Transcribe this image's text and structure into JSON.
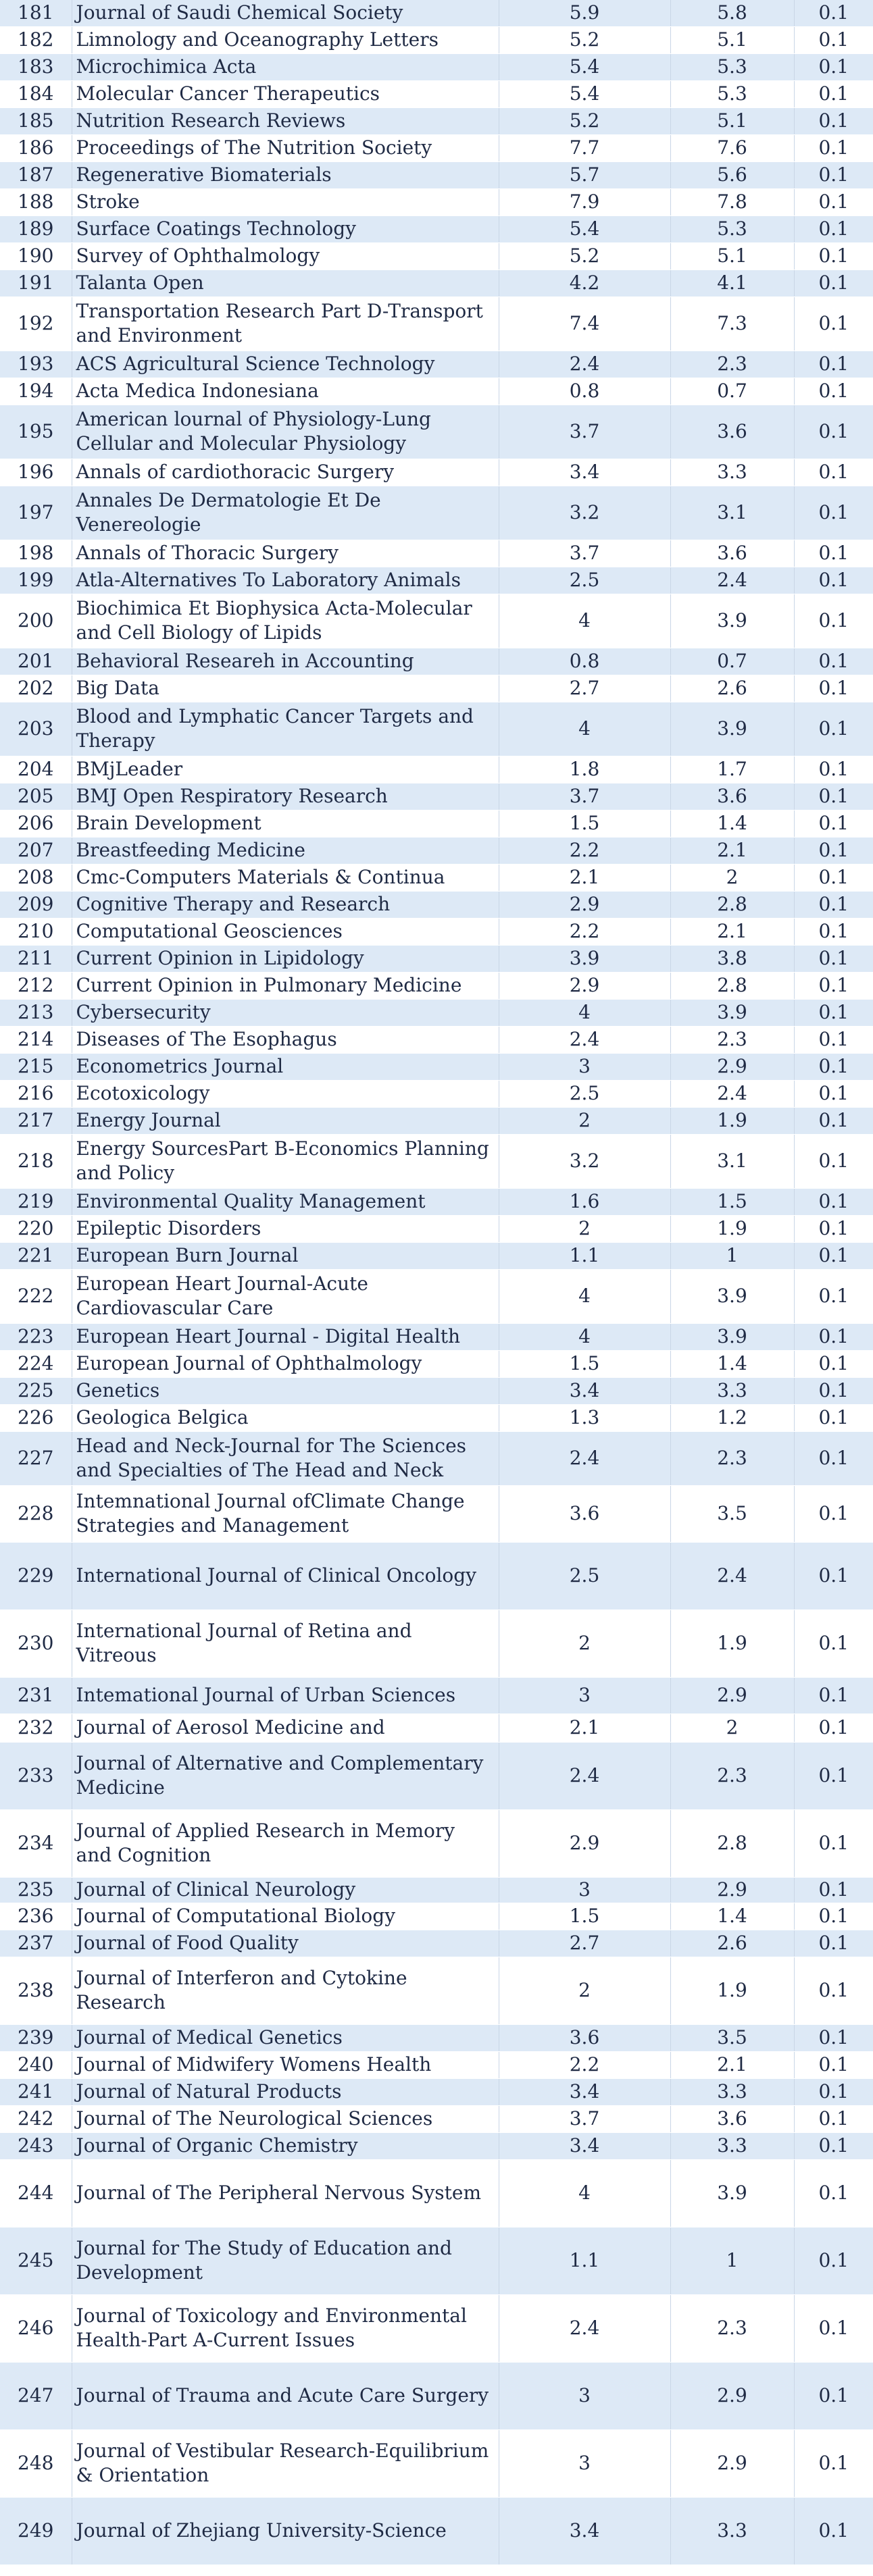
{
  "rows": [
    {
      "no": "181",
      "name": "Journal of Saudi Chemical Society",
      "a": "5.9",
      "b": "5.8",
      "c": "0.1",
      "h": 39
    },
    {
      "no": "182",
      "name": "Limnology and Oceanography Letters",
      "a": "5.2",
      "b": "5.1",
      "c": "0.1",
      "h": 40
    },
    {
      "no": "183",
      "name": "Microchimica Acta",
      "a": "5.4",
      "b": "5.3",
      "c": "0.1",
      "h": 40
    },
    {
      "no": "184",
      "name": "Molecular Cancer Therapeutics",
      "a": "5.4",
      "b": "5.3",
      "c": "0.1",
      "h": 40
    },
    {
      "no": "185",
      "name": "Nutrition Research Reviews",
      "a": "5.2",
      "b": "5.1",
      "c": "0.1",
      "h": 40
    },
    {
      "no": "186",
      "name": "Proceedings of The Nutrition Society",
      "a": "7.7",
      "b": "7.6",
      "c": "0.1",
      "h": 40
    },
    {
      "no": "187",
      "name": "Regenerative Biomaterials",
      "a": "5.7",
      "b": "5.6",
      "c": "0.1",
      "h": 40
    },
    {
      "no": "188",
      "name": "Stroke",
      "a": "7.9",
      "b": "7.8",
      "c": "0.1",
      "h": 40
    },
    {
      "no": "189",
      "name": "Surface Coatings Technology",
      "a": "5.4",
      "b": "5.3",
      "c": "0.1",
      "h": 40
    },
    {
      "no": "190",
      "name": "Survey of Ophthalmology",
      "a": "5.2",
      "b": "5.1",
      "c": "0.1",
      "h": 40
    },
    {
      "no": "191",
      "name": "Talanta Open",
      "a": "4.2",
      "b": "4.1",
      "c": "0.1",
      "h": 40
    },
    {
      "no": "192",
      "name": "Transportation Research Part D-Transport and Environment",
      "a": "7.4",
      "b": "7.3",
      "c": "0.1",
      "h": 80
    },
    {
      "no": "193",
      "name": "ACS Agricultural Science Technology",
      "a": "2.4",
      "b": "2.3",
      "c": "0.1",
      "h": 40
    },
    {
      "no": "194",
      "name": "Acta Medica Indonesiana",
      "a": "0.8",
      "b": "0.7",
      "c": "0.1",
      "h": 40
    },
    {
      "no": "195",
      "name": "American lournal of Physiology-Lung Cellular and Molecular Physiology",
      "a": "3.7",
      "b": "3.6",
      "c": "0.1",
      "h": 80
    },
    {
      "no": "196",
      "name": "Annals of cardiothoracic Surgery",
      "a": "3.4",
      "b": "3.3",
      "c": "0.1",
      "h": 40
    },
    {
      "no": "197",
      "name": "Annales De Dermatologie Et De Venereologie",
      "a": "3.2",
      "b": "3.1",
      "c": "0.1",
      "h": 80
    },
    {
      "no": "198",
      "name": "Annals of Thoracic Surgery",
      "a": "3.7",
      "b": "3.6",
      "c": "0.1",
      "h": 40
    },
    {
      "no": "199",
      "name": "Atla-Alternatives To Laboratory Animals",
      "a": "2.5",
      "b": "2.4",
      "c": "0.1",
      "h": 40
    },
    {
      "no": "200",
      "name": "Biochimica Et Biophysica Acta-Molecular and Cell Biology of Lipids",
      "a": "4",
      "b": "3.9",
      "c": "0.1",
      "h": 80
    },
    {
      "no": "201",
      "name": "Behavioral Researeh in Accounting",
      "a": "0.8",
      "b": "0.7",
      "c": "0.1",
      "h": 40
    },
    {
      "no": "202",
      "name": "Big Data",
      "a": "2.7",
      "b": "2.6",
      "c": "0.1",
      "h": 40
    },
    {
      "no": "203",
      "name": "Blood and Lymphatic Cancer Targets and Therapy",
      "a": "4",
      "b": "3.9",
      "c": "0.1",
      "h": 80
    },
    {
      "no": "204",
      "name": "BMjLeader",
      "a": "1.8",
      "b": "1.7",
      "c": "0.1",
      "h": 40
    },
    {
      "no": "205",
      "name": "BMJ  Open Respiratory Research",
      "a": "3.7",
      "b": "3.6",
      "c": "0.1",
      "h": 40
    },
    {
      "no": "206",
      "name": "Brain Development",
      "a": "1.5",
      "b": "1.4",
      "c": "0.1",
      "h": 40
    },
    {
      "no": "207",
      "name": "Breastfeeding Medicine",
      "a": "2.2",
      "b": "2.1",
      "c": "0.1",
      "h": 40
    },
    {
      "no": "208",
      "name": "Cmc-Computers Materials & Continua",
      "a": "2.1",
      "b": "2",
      "c": "0.1",
      "h": 40
    },
    {
      "no": "209",
      "name": "Cognitive Therapy and Research",
      "a": "2.9",
      "b": "2.8",
      "c": "0.1",
      "h": 40
    },
    {
      "no": "210",
      "name": "Computational Geosciences",
      "a": "2.2",
      "b": "2.1",
      "c": "0.1",
      "h": 40
    },
    {
      "no": "211",
      "name": "Current Opinion in Lipidology",
      "a": "3.9",
      "b": "3.8",
      "c": "0.1",
      "h": 40
    },
    {
      "no": "212",
      "name": "Current Opinion in Pulmonary Medicine",
      "a": "2.9",
      "b": "2.8",
      "c": "0.1",
      "h": 40
    },
    {
      "no": "213",
      "name": "Cybersecurity",
      "a": "4",
      "b": "3.9",
      "c": "0.1",
      "h": 40
    },
    {
      "no": "214",
      "name": "Diseases of The Esophagus",
      "a": "2.4",
      "b": "2.3",
      "c": "0.1",
      "h": 40
    },
    {
      "no": "215",
      "name": "Econometrics Journal",
      "a": "3",
      "b": "2.9",
      "c": "0.1",
      "h": 40
    },
    {
      "no": "216",
      "name": "Ecotoxicology",
      "a": "2.5",
      "b": "2.4",
      "c": "0.1",
      "h": 40
    },
    {
      "no": "217",
      "name": "Energy Journal",
      "a": "2",
      "b": "1.9",
      "c": "0.1",
      "h": 40
    },
    {
      "no": "218",
      "name": "Energy SourcesPart B-Economics Planning and Policy",
      "a": "3.2",
      "b": "3.1",
      "c": "0.1",
      "h": 80
    },
    {
      "no": "219",
      "name": "Environmental Quality Management",
      "a": "1.6",
      "b": "1.5",
      "c": "0.1",
      "h": 40
    },
    {
      "no": "220",
      "name": "Epileptic Disorders",
      "a": "2",
      "b": "1.9",
      "c": "0.1",
      "h": 40
    },
    {
      "no": "221",
      "name": "European Burn Journal",
      "a": "1.1",
      "b": "1",
      "c": "0.1",
      "h": 40
    },
    {
      "no": "222",
      "name": "European Heart Journal-Acute Cardiovascular Care",
      "a": "4",
      "b": "3.9",
      "c": "0.1",
      "h": 80
    },
    {
      "no": "223",
      "name": "European Heart Journal - Digital Health",
      "a": "4",
      "b": "3.9",
      "c": "0.1",
      "h": 40
    },
    {
      "no": "224",
      "name": "European Journal of Ophthalmology",
      "a": "1.5",
      "b": "1.4",
      "c": "0.1",
      "h": 40
    },
    {
      "no": "225",
      "name": "Genetics",
      "a": "3.4",
      "b": "3.3",
      "c": "0.1",
      "h": 40
    },
    {
      "no": "226",
      "name": "Geologica Belgica",
      "a": "1.3",
      "b": "1.2",
      "c": "0.1",
      "h": 40
    },
    {
      "no": "227",
      "name": "Head and Neck-Journal for The Sciences and Specialties of The Head and Neck",
      "a": "2.4",
      "b": "2.3",
      "c": "0.1",
      "h": 80
    },
    {
      "no": "228",
      "name": "Intemnational Journal ofClimate Change Strategies and Management",
      "a": "3.6",
      "b": "3.5",
      "c": "0.1",
      "h": 84
    },
    {
      "no": "229",
      "name": "International Journal of Clinical Oncology",
      "a": "2.5",
      "b": "2.4",
      "c": "0.1",
      "h": 100
    },
    {
      "no": "230",
      "name": "International Journal of Retina and Vitreous",
      "a": "2",
      "b": "1.9",
      "c": "0.1",
      "h": 100
    },
    {
      "no": "231",
      "name": "Intemational Journal of Urban Sciences",
      "a": "3",
      "b": "2.9",
      "c": "0.1",
      "h": 54
    },
    {
      "no": "232",
      "name": "Journal of Aerosol Medicine and",
      "a": "2.1",
      "b": "2",
      "c": "0.1",
      "h": 42
    },
    {
      "no": "233",
      "name": "Journal of Alternative and Complementary Medicine",
      "a": "2.4",
      "b": "2.3",
      "c": "0.1",
      "h": 100
    },
    {
      "no": "234",
      "name": "Journal of Applied Research in Memory and Cognition",
      "a": "2.9",
      "b": "2.8",
      "c": "0.1",
      "h": 100
    },
    {
      "no": "235",
      "name": "Journal of Clinical Neurology",
      "a": "3",
      "b": "2.9",
      "c": "0.1",
      "h": 38
    },
    {
      "no": "236",
      "name": "Journal of Computational Biology",
      "a": "1.5",
      "b": "1.4",
      "c": "0.1",
      "h": 40
    },
    {
      "no": "237",
      "name": "Journal of Food Quality",
      "a": "2.7",
      "b": "2.6",
      "c": "0.1",
      "h": 40
    },
    {
      "no": "238",
      "name": "Journal of Interferon and Cytokine Research",
      "a": "2",
      "b": "1.9",
      "c": "0.1",
      "h": 100
    },
    {
      "no": "239",
      "name": "Journal of Medical Genetics",
      "a": "3.6",
      "b": "3.5",
      "c": "0.1",
      "h": 40
    },
    {
      "no": "240",
      "name": "Journal of Midwifery Womens Health",
      "a": "2.2",
      "b": "2.1",
      "c": "0.1",
      "h": 40
    },
    {
      "no": "241",
      "name": "Journal of Natural Products",
      "a": "3.4",
      "b": "3.3",
      "c": "0.1",
      "h": 40
    },
    {
      "no": "242",
      "name": "Journal of The Neurological Sciences",
      "a": "3.7",
      "b": "3.6",
      "c": "0.1",
      "h": 40
    },
    {
      "no": "243",
      "name": "Journal of Organic Chemistry",
      "a": "3.4",
      "b": "3.3",
      "c": "0.1",
      "h": 40
    },
    {
      "no": "244",
      "name": "Journal of The Peripheral Nervous System",
      "a": "4",
      "b": "3.9",
      "c": "0.1",
      "h": 100
    },
    {
      "no": "245",
      "name": "Journal for The Study of Education and Development",
      "a": "1.1",
      "b": "1",
      "c": "0.1",
      "h": 100
    },
    {
      "no": "246",
      "name": "Journal of Toxicology and Environmental Health-Part A-Current Issues",
      "a": "2.4",
      "b": "2.3",
      "c": "0.1",
      "h": 100
    },
    {
      "no": "247",
      "name": "Journal of Trauma and Acute Care Surgery",
      "a": "3",
      "b": "2.9",
      "c": "0.1",
      "h": 100
    },
    {
      "no": "248",
      "name": "Journal of Vestibular Research-Equilibrium & Orientation",
      "a": "3",
      "b": "2.9",
      "c": "0.1",
      "h": 100
    },
    {
      "no": "249",
      "name": "Journal of Zhejiang University-Science",
      "a": "3.4",
      "b": "3.3",
      "c": "0.1",
      "h": 100
    }
  ]
}
